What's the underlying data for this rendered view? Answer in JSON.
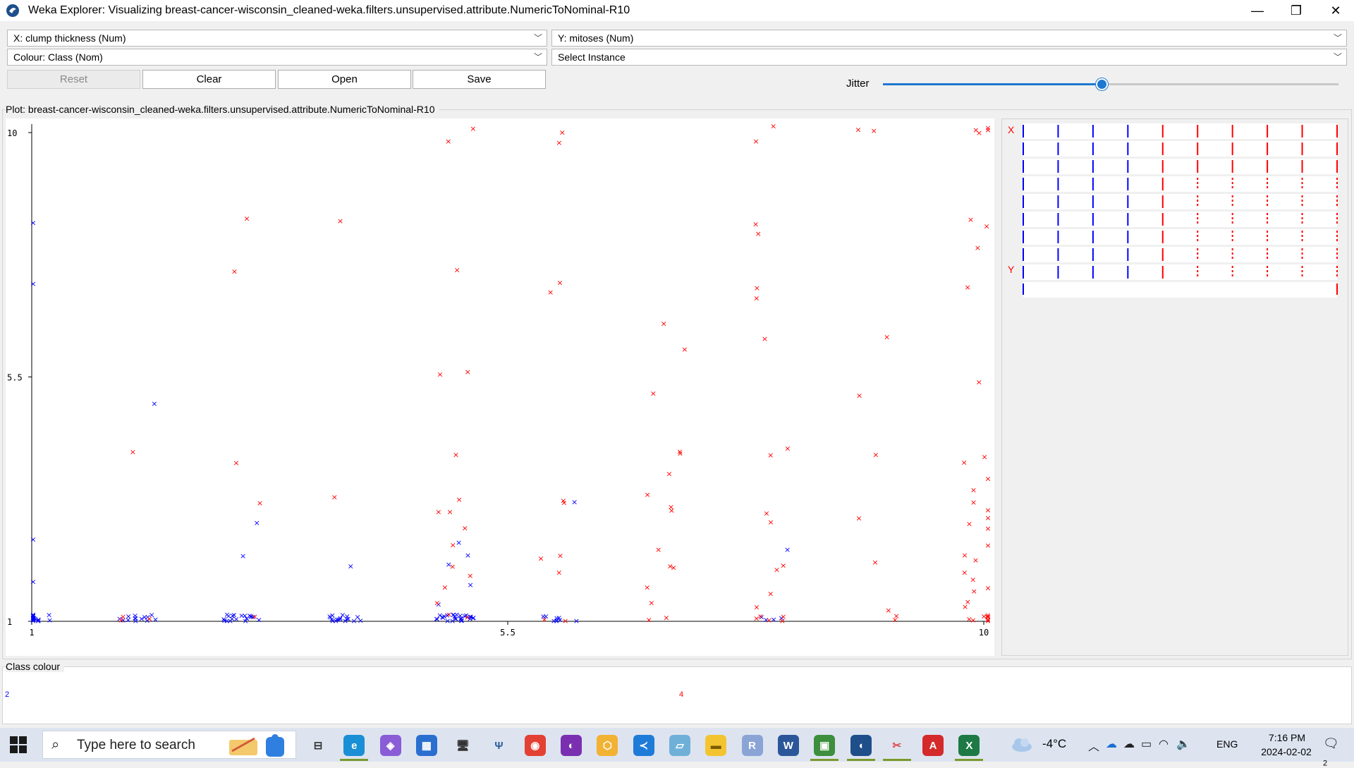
{
  "window": {
    "title": "Weka Explorer: Visualizing breast-cancer-wisconsin_cleaned-weka.filters.unsupervised.attribute.NumericToNominal-R10",
    "controls": {
      "minimize": "—",
      "maximize": "❐",
      "close": "✕"
    }
  },
  "selectors": {
    "x_axis": "X: clump thickness (Num)",
    "y_axis": "Y: mitoses (Num)",
    "colour": "Colour: Class (Nom)",
    "instance": "Select Instance"
  },
  "buttons": {
    "reset": "Reset",
    "clear": "Clear",
    "open": "Open",
    "save": "Save"
  },
  "jitter": {
    "label": "Jitter",
    "value": 0.48
  },
  "plot": {
    "label": "Plot: breast-cancer-wisconsin_cleaned-weka.filters.unsupervised.attribute.NumericToNominal-R10"
  },
  "matrix": {
    "x_label": "X",
    "y_label": "Y"
  },
  "class_colour": {
    "label": "Class colour",
    "classes": [
      "2",
      "4"
    ]
  },
  "colors": {
    "benign": "#0000ff",
    "malignant": "#ff0000",
    "accent": "#1e78d0"
  },
  "chart_data": {
    "type": "scatter",
    "xlim": [
      1,
      10
    ],
    "ylim": [
      1,
      10
    ],
    "x_ticks": [
      "1",
      "5.5",
      "10"
    ],
    "y_ticks": [
      "1",
      "5.5",
      "10"
    ],
    "marker": "×",
    "series": [
      {
        "name": "2",
        "color": "#0000ff",
        "points": [
          [
            1,
            1
          ],
          [
            1,
            1
          ],
          [
            1,
            1
          ],
          [
            1,
            1
          ],
          [
            1,
            1
          ],
          [
            1,
            1
          ],
          [
            1,
            1
          ],
          [
            1,
            1
          ],
          [
            1,
            1
          ],
          [
            1,
            1
          ],
          [
            1,
            1
          ],
          [
            1,
            1
          ],
          [
            1,
            1
          ],
          [
            1,
            1
          ],
          [
            1,
            1
          ],
          [
            1,
            1
          ],
          [
            1,
            1
          ],
          [
            1,
            1
          ],
          [
            1,
            1
          ],
          [
            1,
            1
          ],
          [
            1,
            8.3
          ],
          [
            1,
            7.1
          ],
          [
            1,
            2.4
          ],
          [
            1,
            1.7
          ],
          [
            2,
            1
          ],
          [
            2,
            1
          ],
          [
            2,
            1
          ],
          [
            2,
            1
          ],
          [
            2,
            1
          ],
          [
            2,
            1
          ],
          [
            2,
            1
          ],
          [
            2,
            1
          ],
          [
            2,
            1
          ],
          [
            2,
            1
          ],
          [
            2,
            1
          ],
          [
            2,
            1
          ],
          [
            2,
            1
          ],
          [
            2,
            1
          ],
          [
            2,
            4.9
          ],
          [
            3,
            1
          ],
          [
            3,
            1
          ],
          [
            3,
            1
          ],
          [
            3,
            1
          ],
          [
            3,
            1
          ],
          [
            3,
            1
          ],
          [
            3,
            1
          ],
          [
            3,
            1
          ],
          [
            3,
            1
          ],
          [
            3,
            1
          ],
          [
            3,
            1
          ],
          [
            3,
            1
          ],
          [
            3,
            1
          ],
          [
            3,
            1
          ],
          [
            3,
            1
          ],
          [
            3,
            1
          ],
          [
            3,
            1
          ],
          [
            3,
            1
          ],
          [
            3,
            1
          ],
          [
            3,
            1
          ],
          [
            3,
            2.8
          ],
          [
            3,
            2.2
          ],
          [
            4,
            1
          ],
          [
            4,
            1
          ],
          [
            4,
            1
          ],
          [
            4,
            1
          ],
          [
            4,
            1
          ],
          [
            4,
            1
          ],
          [
            4,
            1
          ],
          [
            4,
            1
          ],
          [
            4,
            1
          ],
          [
            4,
            1
          ],
          [
            4,
            1
          ],
          [
            4,
            1
          ],
          [
            4,
            1
          ],
          [
            4,
            1
          ],
          [
            4,
            1
          ],
          [
            4,
            1
          ],
          [
            4,
            1
          ],
          [
            4,
            1
          ],
          [
            4,
            1.9
          ],
          [
            5,
            1
          ],
          [
            5,
            1
          ],
          [
            5,
            1
          ],
          [
            5,
            1
          ],
          [
            5,
            1
          ],
          [
            5,
            1
          ],
          [
            5,
            1
          ],
          [
            5,
            1
          ],
          [
            5,
            1
          ],
          [
            5,
            1
          ],
          [
            5,
            1
          ],
          [
            5,
            1
          ],
          [
            5,
            1
          ],
          [
            5,
            1
          ],
          [
            5,
            1
          ],
          [
            5,
            1
          ],
          [
            5,
            1
          ],
          [
            5,
            1
          ],
          [
            5,
            1
          ],
          [
            5,
            1
          ],
          [
            5,
            1
          ],
          [
            5,
            1
          ],
          [
            5,
            1
          ],
          [
            5,
            1
          ],
          [
            5,
            1
          ],
          [
            5,
            1
          ],
          [
            5,
            1
          ],
          [
            5,
            2.4
          ],
          [
            5,
            2.2
          ],
          [
            5,
            2.0
          ],
          [
            5,
            1.6
          ],
          [
            5,
            1.3
          ],
          [
            6,
            1
          ],
          [
            6,
            1
          ],
          [
            6,
            1
          ],
          [
            6,
            1
          ],
          [
            6,
            1
          ],
          [
            6,
            1
          ],
          [
            6,
            1
          ],
          [
            6,
            1
          ],
          [
            6,
            1
          ],
          [
            6,
            3.2
          ],
          [
            8,
            1
          ],
          [
            8,
            1
          ],
          [
            8,
            1
          ],
          [
            8,
            1
          ],
          [
            8,
            2.2
          ]
        ]
      },
      {
        "name": "4",
        "color": "#ff0000",
        "points": [
          [
            2,
            4.0
          ],
          [
            2,
            1
          ],
          [
            2,
            1
          ],
          [
            2,
            1
          ],
          [
            3,
            8.3
          ],
          [
            3,
            7.4
          ],
          [
            3,
            3.9
          ],
          [
            3,
            3.1
          ],
          [
            3,
            1
          ],
          [
            4,
            8.3
          ],
          [
            4,
            3.2
          ],
          [
            5,
            10
          ],
          [
            5,
            9.8
          ],
          [
            5,
            7.4
          ],
          [
            5,
            5.5
          ],
          [
            5,
            5.5
          ],
          [
            5,
            4.0
          ],
          [
            5,
            3.2
          ],
          [
            5,
            3.0
          ],
          [
            5,
            2.9
          ],
          [
            5,
            2.6
          ],
          [
            5,
            2.3
          ],
          [
            5,
            2.0
          ],
          [
            5,
            1.8
          ],
          [
            5,
            1.6
          ],
          [
            5,
            1.3
          ],
          [
            5,
            1
          ],
          [
            5,
            1
          ],
          [
            6,
            10
          ],
          [
            6,
            9.8
          ],
          [
            6,
            7.2
          ],
          [
            6,
            7.0
          ],
          [
            6,
            3.2
          ],
          [
            6,
            3.1
          ],
          [
            6,
            2.2
          ],
          [
            6,
            2.1
          ],
          [
            6,
            1.9
          ],
          [
            6,
            1
          ],
          [
            6,
            1
          ],
          [
            7,
            6.4
          ],
          [
            7,
            5.9
          ],
          [
            7,
            5.2
          ],
          [
            7,
            4.0
          ],
          [
            7,
            4.0
          ],
          [
            7,
            3.6
          ],
          [
            7,
            3.3
          ],
          [
            7,
            3.1
          ],
          [
            7,
            3.0
          ],
          [
            7,
            2.2
          ],
          [
            7,
            2.0
          ],
          [
            7,
            1.9
          ],
          [
            7,
            1.6
          ],
          [
            7,
            1.3
          ],
          [
            7,
            1
          ],
          [
            7,
            1
          ],
          [
            8,
            10
          ],
          [
            8,
            9.8
          ],
          [
            8,
            8.3
          ],
          [
            8,
            8.1
          ],
          [
            8,
            7.1
          ],
          [
            8,
            6.9
          ],
          [
            8,
            6.1
          ],
          [
            8,
            4.0
          ],
          [
            8,
            4.1
          ],
          [
            8,
            2.9
          ],
          [
            8,
            2.8
          ],
          [
            8,
            2.0
          ],
          [
            8,
            1.9
          ],
          [
            8,
            1.4
          ],
          [
            8,
            1.2
          ],
          [
            8,
            1
          ],
          [
            8,
            1
          ],
          [
            8,
            1
          ],
          [
            8,
            1
          ],
          [
            8,
            1
          ],
          [
            9,
            10
          ],
          [
            9,
            10
          ],
          [
            9,
            6.2
          ],
          [
            9,
            5.1
          ],
          [
            9,
            4.0
          ],
          [
            9,
            2.8
          ],
          [
            9,
            2.0
          ],
          [
            9,
            1.2
          ],
          [
            9,
            1
          ],
          [
            9,
            1
          ],
          [
            10,
            10
          ],
          [
            10,
            10
          ],
          [
            10,
            10
          ],
          [
            10,
            9.9
          ],
          [
            10,
            8.3
          ],
          [
            10,
            8.2
          ],
          [
            10,
            7.8
          ],
          [
            10,
            7.1
          ],
          [
            10,
            5.4
          ],
          [
            10,
            4.0
          ],
          [
            10,
            3.8
          ],
          [
            10,
            3.6
          ],
          [
            10,
            3.3
          ],
          [
            10,
            3.1
          ],
          [
            10,
            3.0
          ],
          [
            10,
            2.9
          ],
          [
            10,
            2.8
          ],
          [
            10,
            2.6
          ],
          [
            10,
            2.4
          ],
          [
            10,
            2.2
          ],
          [
            10,
            2.0
          ],
          [
            10,
            1.9
          ],
          [
            10,
            1.7
          ],
          [
            10,
            1.6
          ],
          [
            10,
            1.5
          ],
          [
            10,
            1.3
          ],
          [
            10,
            1.2
          ],
          [
            10,
            1
          ],
          [
            10,
            1
          ],
          [
            10,
            1
          ],
          [
            10,
            1
          ],
          [
            10,
            1
          ],
          [
            10,
            1
          ],
          [
            10,
            1
          ],
          [
            10,
            1
          ],
          [
            10,
            1
          ],
          [
            10,
            1
          ]
        ]
      }
    ]
  },
  "taskbar": {
    "search_placeholder": "Type here to search",
    "search_icon": "⌕",
    "temperature": "-4°C",
    "language": "ENG",
    "time": "7:16 PM",
    "date": "2024-02-02",
    "notification_count": "2",
    "apps": [
      {
        "name": "task-view-icon",
        "glyph": "⊟",
        "bg": "transparent",
        "fg": "#333"
      },
      {
        "name": "edge-icon",
        "glyph": "e",
        "bg": "#1a8fd6",
        "fg": "#fff",
        "active": true
      },
      {
        "name": "copilot-icon",
        "glyph": "◈",
        "bg": "#8a5cd6",
        "fg": "#fff"
      },
      {
        "name": "store-icon",
        "glyph": "▦",
        "bg": "#2a6fd0",
        "fg": "#fff"
      },
      {
        "name": "network-share-icon",
        "glyph": "🖥",
        "bg": "transparent",
        "fg": "#333"
      },
      {
        "name": "elephant-app-icon",
        "glyph": "Ψ",
        "bg": "transparent",
        "fg": "#2b5fa0"
      },
      {
        "name": "chrome-icon",
        "glyph": "◉",
        "bg": "#e34133",
        "fg": "#fff"
      },
      {
        "name": "tor-icon",
        "glyph": "◐",
        "bg": "#7a2fb0",
        "fg": "#fff"
      },
      {
        "name": "cube-app-icon",
        "glyph": "⬡",
        "bg": "#f2b233",
        "fg": "#fff"
      },
      {
        "name": "vscode-icon",
        "glyph": "≺",
        "bg": "#1f7bd8",
        "fg": "#fff"
      },
      {
        "name": "paper-app-icon",
        "glyph": "▱",
        "bg": "#6fb0d8",
        "fg": "#fff"
      },
      {
        "name": "file-explorer-icon",
        "glyph": "▬",
        "bg": "#f4c430",
        "fg": "#7a5b00"
      },
      {
        "name": "r-app-icon",
        "glyph": "R",
        "bg": "#8aa4d6",
        "fg": "#fff"
      },
      {
        "name": "word-icon",
        "glyph": "W",
        "bg": "#2b579a",
        "fg": "#fff"
      },
      {
        "name": "image-app-icon",
        "glyph": "▣",
        "bg": "#3d8f3d",
        "fg": "#fff",
        "active": true
      },
      {
        "name": "weka-icon",
        "glyph": "◖",
        "bg": "#1e4f8a",
        "fg": "#fff",
        "active": true
      },
      {
        "name": "snipping-tool-icon",
        "glyph": "✂",
        "bg": "transparent",
        "fg": "#e0484a",
        "active": true
      },
      {
        "name": "acrobat-icon",
        "glyph": "A",
        "bg": "#d42a2a",
        "fg": "#fff"
      },
      {
        "name": "excel-icon",
        "glyph": "X",
        "bg": "#1d7a44",
        "fg": "#fff",
        "active": true
      }
    ],
    "tray_icons": [
      "chevron-up-icon",
      "onedrive-icon",
      "cloud-icon",
      "battery-icon",
      "wifi-icon",
      "speaker-icon"
    ]
  }
}
